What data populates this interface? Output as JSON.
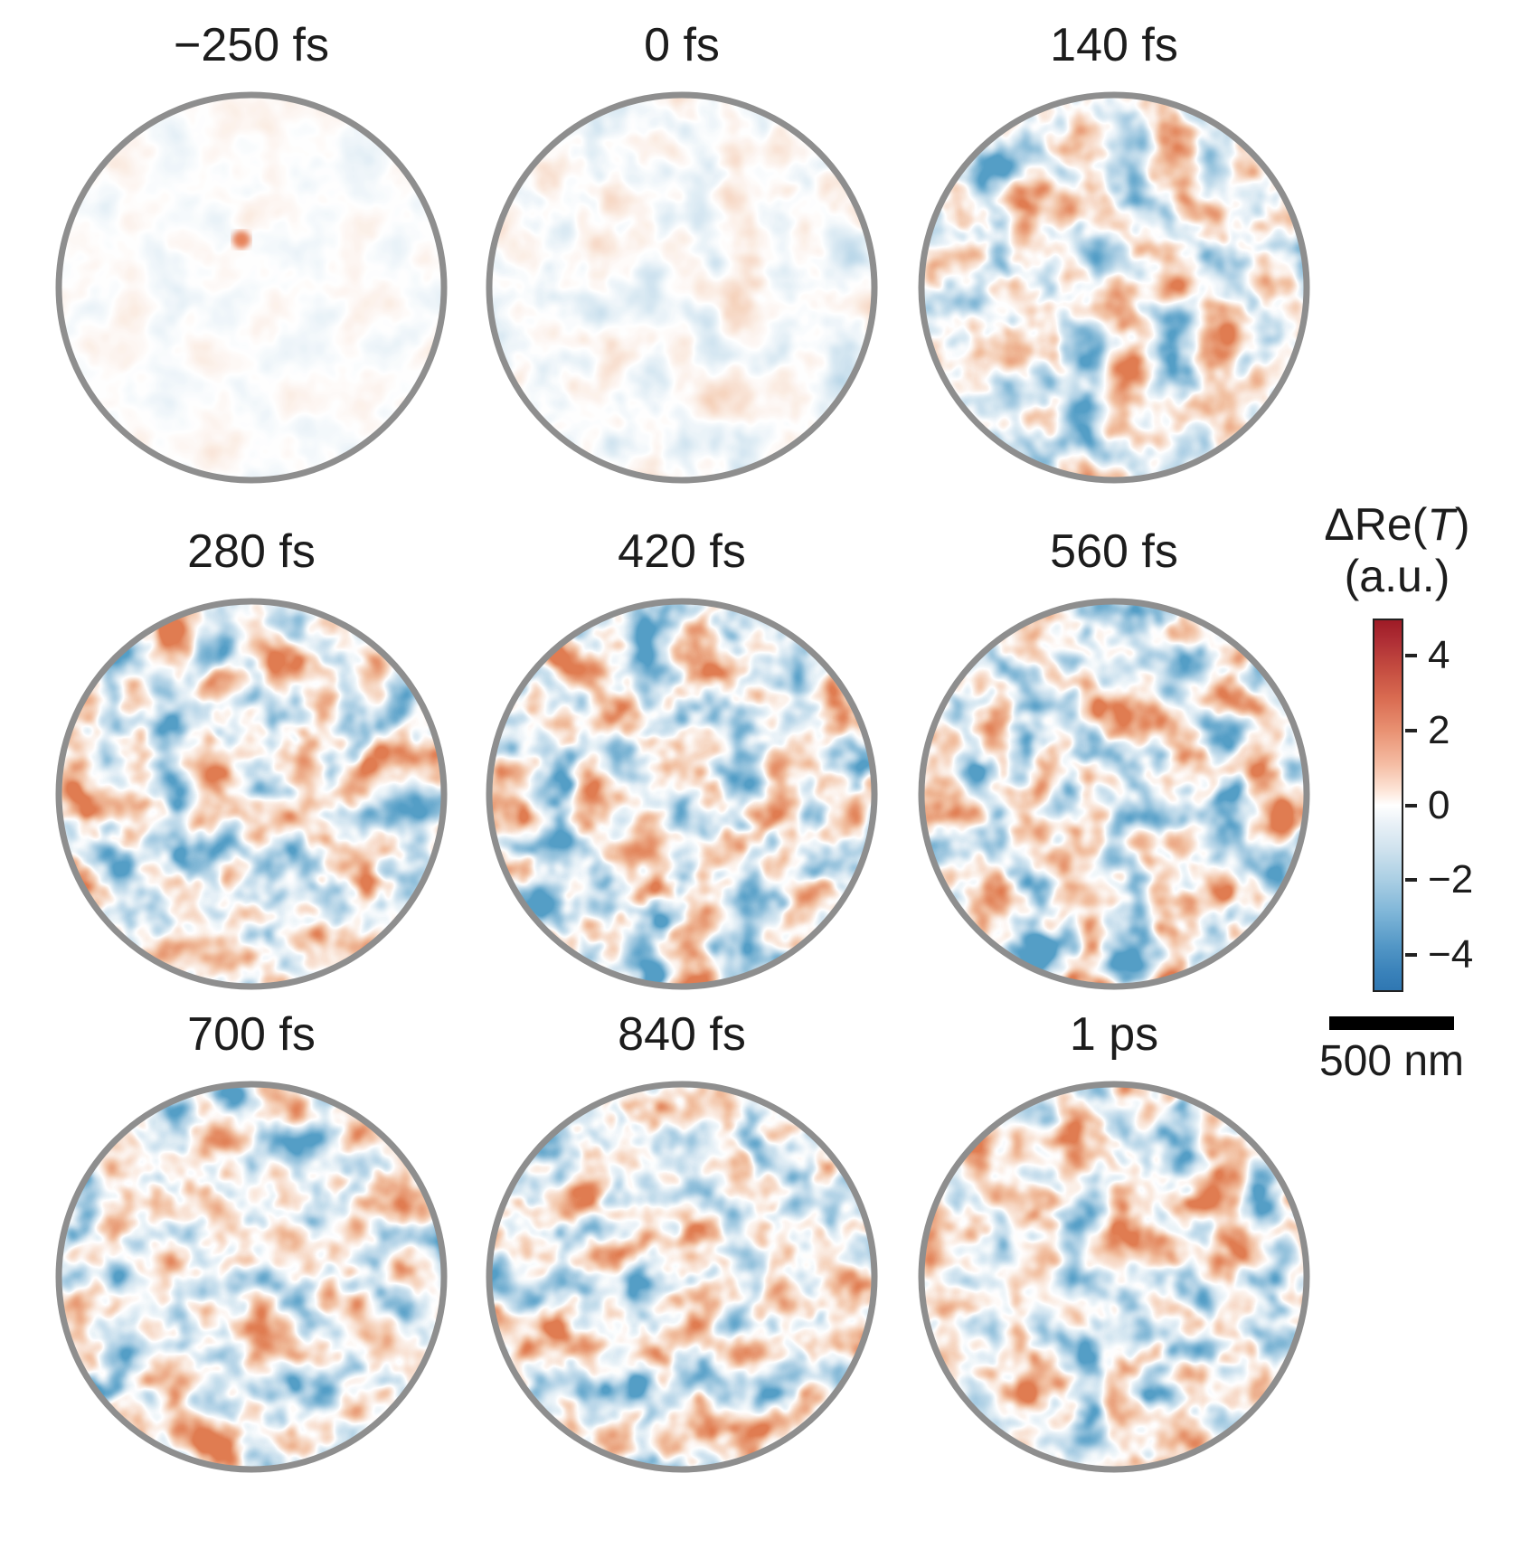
{
  "figure": {
    "panels": [
      {
        "label": "−250 fs"
      },
      {
        "label": "0 fs"
      },
      {
        "label": "140 fs"
      },
      {
        "label": "280 fs"
      },
      {
        "label": "420 fs"
      },
      {
        "label": "560 fs"
      },
      {
        "label": "700 fs"
      },
      {
        "label": "840 fs"
      },
      {
        "label": "1 ps"
      }
    ],
    "colorbar": {
      "title_prefix": "ΔRe(",
      "title_symbol": "T",
      "title_suffix": ")",
      "units": "(a.u.)",
      "tick_labels": [
        "4",
        "2",
        "0",
        "−2",
        "−4"
      ],
      "top_color": "#9e1b26",
      "mid_color": "#ffffff",
      "bottom_color": "#2f77b2",
      "outline_color": "#222222"
    },
    "scale_bar": {
      "label": "500 nm",
      "color": "#000000"
    },
    "disc_outline_color": "#8e8e8e"
  },
  "chart_data": {
    "type": "heatmap",
    "title": "ΔRe(T) (a.u.) transient maps versus pump–probe delay",
    "layout": "3×3 grid of circular fields of view, colorbar and scale bar at right",
    "panel_delays": [
      "−250 fs",
      "0 fs",
      "140 fs",
      "280 fs",
      "420 fs",
      "560 fs",
      "700 fs",
      "840 fs",
      "1 ps"
    ],
    "panel_relative_signal": [
      0.15,
      0.4,
      0.85,
      1.0,
      1.0,
      1.0,
      1.0,
      1.0,
      1.0
    ],
    "value_label": "ΔRe(T) (a.u.)",
    "colorbar_ticks": [
      4,
      2,
      0,
      -2,
      -4
    ],
    "colorbar_range": [
      -5,
      5
    ],
    "colormap": "diverging red–white–blue (RdBu-like, red = positive)",
    "scale_bar_length": "500 nm",
    "pattern": "random speckle of pale red/orange and pale blue blobs inside gray-outlined circles; signal nearly absent at −250 fs, weak at 0 fs, fully developed from ~140 fs onward"
  }
}
